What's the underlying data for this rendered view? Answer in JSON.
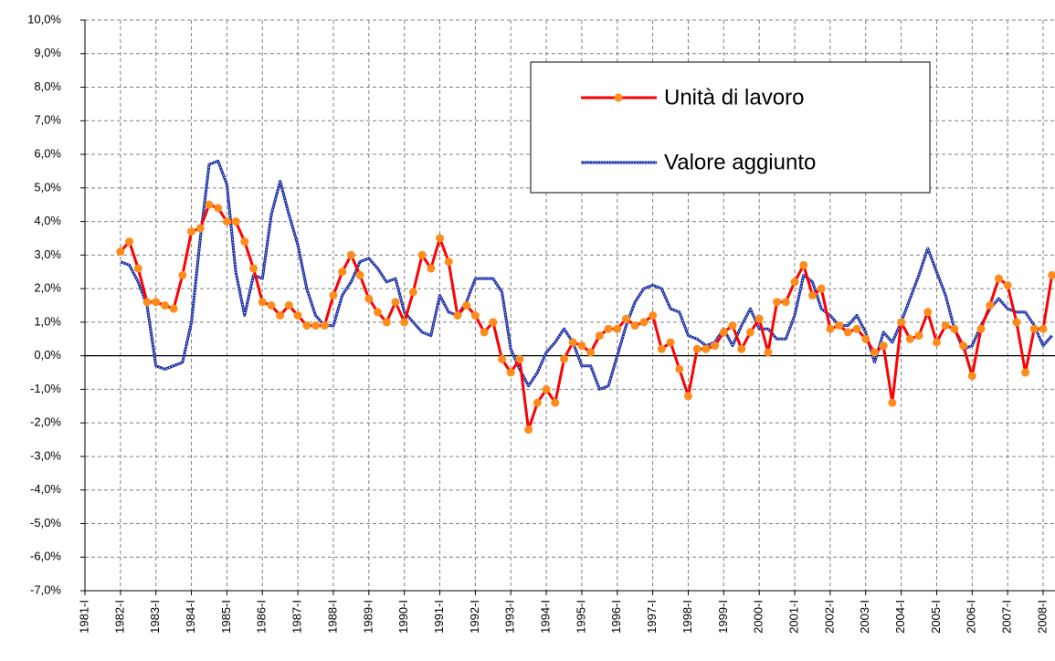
{
  "chart_data": {
    "type": "line",
    "categories": [
      "1981-I",
      null,
      null,
      null,
      "1982-I",
      null,
      null,
      null,
      "1983-I",
      null,
      null,
      null,
      "1984-I",
      null,
      null,
      null,
      "1985-I",
      null,
      null,
      null,
      "1986-I",
      null,
      null,
      null,
      "1987-I",
      null,
      null,
      null,
      "1988-I",
      null,
      null,
      null,
      "1989-I",
      null,
      null,
      null,
      "1990-I",
      null,
      null,
      null,
      "1991-I",
      null,
      null,
      null,
      "1992-I",
      null,
      null,
      null,
      "1993-I",
      null,
      null,
      null,
      "1994-I",
      null,
      null,
      null,
      "1995-I",
      null,
      null,
      null,
      "1996-I",
      null,
      null,
      null,
      "1997-I",
      null,
      null,
      null,
      "1998-I",
      null,
      null,
      null,
      "1999-I",
      null,
      null,
      null,
      "2000-I",
      null,
      null,
      null,
      "2001-I",
      null,
      null,
      null,
      "2002-I",
      null,
      null,
      null,
      "2003-I",
      null,
      null,
      null,
      "2004-I",
      null,
      null,
      null,
      "2005-I",
      null,
      null,
      null,
      "2006-I",
      null,
      null,
      null,
      "2007-I",
      null,
      null,
      null,
      "2008-I",
      null
    ],
    "series": [
      {
        "name": "Unità di lavoro",
        "color": "#ff0000",
        "marker_color": "#ff8c1a",
        "values": [
          null,
          null,
          null,
          null,
          3.1,
          3.4,
          2.6,
          1.6,
          1.6,
          1.5,
          1.4,
          2.4,
          3.7,
          3.8,
          4.5,
          4.4,
          4.0,
          4.0,
          3.4,
          2.6,
          1.6,
          1.5,
          1.2,
          1.5,
          1.2,
          0.9,
          0.9,
          0.9,
          1.8,
          2.5,
          3.0,
          2.4,
          1.7,
          1.3,
          1.0,
          1.6,
          1.0,
          1.9,
          3.0,
          2.6,
          3.5,
          2.8,
          1.2,
          1.5,
          1.2,
          0.7,
          1.0,
          -0.1,
          -0.5,
          -0.1,
          -2.2,
          -1.4,
          -1.0,
          -1.4,
          -0.1,
          0.4,
          0.3,
          0.1,
          0.6,
          0.8,
          0.8,
          1.1,
          0.9,
          1.0,
          1.2,
          0.2,
          0.4,
          -0.4,
          -1.2,
          0.2,
          0.2,
          0.3,
          0.7,
          0.9,
          0.2,
          0.7,
          1.1,
          0.1,
          1.6,
          1.6,
          2.2,
          2.7,
          1.8,
          2.0,
          0.8,
          0.9,
          0.7,
          0.8,
          0.5,
          0.1,
          0.3,
          -1.4,
          1.0,
          0.5,
          0.6,
          1.3,
          0.4,
          0.9,
          0.8,
          0.3,
          -0.6,
          0.8,
          1.5,
          2.3,
          2.1,
          1.0,
          -0.5,
          0.8,
          0.8,
          2.4
        ]
      },
      {
        "name": "Valore aggiunto",
        "color": "#1a2fa8",
        "values": [
          null,
          null,
          null,
          null,
          2.8,
          2.7,
          2.2,
          1.5,
          -0.3,
          -0.4,
          -0.3,
          -0.2,
          1.0,
          3.5,
          5.7,
          5.8,
          5.1,
          2.5,
          1.2,
          2.4,
          2.3,
          4.2,
          5.2,
          4.2,
          3.3,
          2.0,
          1.2,
          0.9,
          0.9,
          1.8,
          2.2,
          2.8,
          2.9,
          2.6,
          2.2,
          2.3,
          1.3,
          1.0,
          0.7,
          0.6,
          1.8,
          1.3,
          1.2,
          1.6,
          2.3,
          2.3,
          2.3,
          1.9,
          0.2,
          -0.4,
          -0.9,
          -0.5,
          0.1,
          0.4,
          0.8,
          0.4,
          -0.3,
          -0.3,
          -1.0,
          -0.9,
          0.0,
          0.9,
          1.6,
          2.0,
          2.1,
          2.0,
          1.4,
          1.3,
          0.6,
          0.5,
          0.3,
          0.4,
          0.8,
          0.3,
          0.9,
          1.4,
          0.8,
          0.8,
          0.5,
          0.5,
          1.2,
          2.4,
          2.2,
          1.4,
          1.2,
          0.9,
          0.9,
          1.2,
          0.7,
          -0.2,
          0.7,
          0.4,
          1.0,
          1.7,
          2.4,
          3.2,
          2.5,
          1.8,
          0.8,
          0.2,
          0.3,
          0.9,
          1.4,
          1.7,
          1.4,
          1.3,
          1.3,
          0.9,
          0.3,
          0.6
        ]
      }
    ],
    "ylim": [
      -7,
      10
    ],
    "yticks": [
      {
        "value": -7,
        "label": "-7,0%"
      },
      {
        "value": -6,
        "label": "-6,0%"
      },
      {
        "value": -5,
        "label": "-5,0%"
      },
      {
        "value": -4,
        "label": "-4,0%"
      },
      {
        "value": -3,
        "label": "-3,0%"
      },
      {
        "value": -2,
        "label": "-2,0%"
      },
      {
        "value": -1,
        "label": "-1,0%"
      },
      {
        "value": 0,
        "label": "0,0%"
      },
      {
        "value": 1,
        "label": "1,0%"
      },
      {
        "value": 2,
        "label": "2,0%"
      },
      {
        "value": 3,
        "label": "3,0%"
      },
      {
        "value": 4,
        "label": "4,0%"
      },
      {
        "value": 5,
        "label": "5,0%"
      },
      {
        "value": 6,
        "label": "6,0%"
      },
      {
        "value": 7,
        "label": "7,0%"
      },
      {
        "value": 8,
        "label": "8,0%"
      },
      {
        "value": 9,
        "label": "9,0%"
      },
      {
        "value": 10,
        "label": "10,0%"
      }
    ],
    "grid": true
  }
}
